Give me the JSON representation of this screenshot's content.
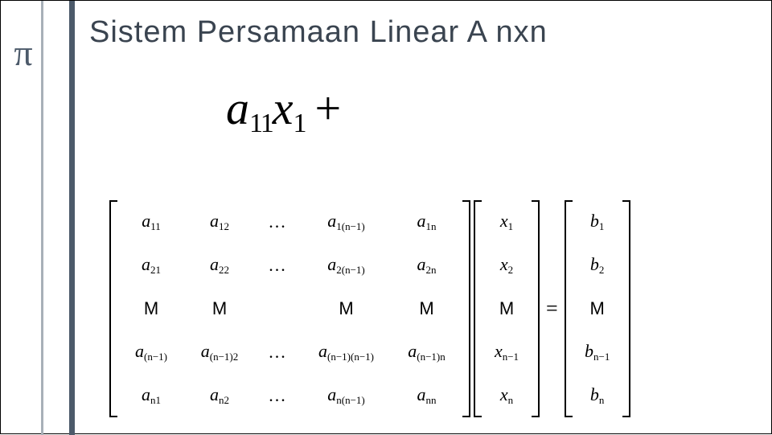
{
  "sidebar": {
    "pi": "π"
  },
  "title": "Sistem Persamaan Linear A nxn",
  "eq_large": {
    "a": "a",
    "sub1": "11",
    "x": "x",
    "sub2": "1",
    "plus": "+"
  },
  "A": {
    "r1": [
      "a",
      "11",
      "a",
      "12",
      "...",
      "a",
      "1(n−1)",
      "a",
      "1n"
    ],
    "r2": [
      "a",
      "21",
      "a",
      "22",
      "...",
      "a",
      "2(n−1)",
      "a",
      "2n"
    ],
    "r3": [
      "M",
      "M",
      "",
      "M",
      "M"
    ],
    "r4": [
      "a",
      "(n−1)",
      "a",
      "(n−1)2",
      "...",
      "a",
      "(n−1)(n−1)",
      "a",
      "(n−1)n"
    ],
    "r5": [
      "a",
      "n1",
      "a",
      "n2",
      "...",
      "a",
      "n(n−1)",
      "a",
      "nn"
    ]
  },
  "X": [
    "x",
    "1",
    "x",
    "2",
    "M",
    "x",
    "n−1",
    "x",
    "n"
  ],
  "eq": "=",
  "B": [
    "b",
    "1",
    "b",
    "2",
    "M",
    "b",
    "n−1",
    "b",
    "n"
  ]
}
